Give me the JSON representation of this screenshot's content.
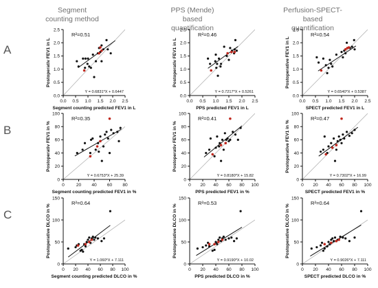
{
  "column_headers": [
    [
      "Segment",
      "counting method"
    ],
    [
      "PPS (Mende)",
      "based",
      "quantification"
    ],
    [
      "Perfusion-SPECT-",
      "based",
      "quantification"
    ]
  ],
  "row_letters": [
    "A",
    "B",
    "C"
  ],
  "colors": {
    "normal_point": "#111111",
    "highlight_point": "#c0281e",
    "identity_line": "#b5b5b5",
    "fit_line": "#111111",
    "header_text": "#707070"
  },
  "chart_data": [
    {
      "type": "scatter",
      "panel": "A-segment",
      "xlabel": "Segment counting predicted FEV1 in L",
      "ylabel": "Postoperativ FEV1 in L",
      "xlim": [
        0,
        2.5
      ],
      "ylim": [
        0,
        2.5
      ],
      "xticks": [
        "0.0",
        "0.5",
        "1.0",
        "1.5",
        "2.0",
        "2.5"
      ],
      "yticks": [
        "0.0",
        "0.5",
        "1.0",
        "1.5",
        "2.0",
        "2.5"
      ],
      "xtick_values": [
        0,
        0.5,
        1,
        1.5,
        2,
        2.5
      ],
      "ytick_values": [
        0,
        0.5,
        1,
        1.5,
        2,
        2.5
      ],
      "r2": "R²=0.51",
      "equation": "Y = 0.6831*X + 0.6447",
      "fit": {
        "slope": 0.6831,
        "intercept": 0.6447,
        "x_range": [
          0.6,
          2.1
        ]
      },
      "points": [
        [
          0.55,
          1.3
        ],
        [
          0.62,
          1.1
        ],
        [
          0.8,
          1.4
        ],
        [
          0.9,
          1.4
        ],
        [
          0.88,
          1.05
        ],
        [
          0.98,
          1.2
        ],
        [
          1.0,
          1.4
        ],
        [
          1.05,
          1.1
        ],
        [
          1.12,
          1.05
        ],
        [
          1.2,
          1.55
        ],
        [
          1.25,
          0.7
        ],
        [
          1.32,
          1.3
        ],
        [
          1.4,
          1.6
        ],
        [
          1.45,
          1.8
        ],
        [
          1.5,
          1.65
        ],
        [
          1.55,
          1.3
        ],
        [
          1.55,
          1.9
        ],
        [
          1.62,
          1.75
        ],
        [
          1.75,
          2.1
        ],
        [
          1.8,
          1.75
        ],
        [
          1.92,
          1.6
        ]
      ],
      "highlight_points": [
        [
          0.85,
          0.95
        ],
        [
          1.45,
          1.6
        ],
        [
          1.5,
          1.82
        ],
        [
          1.55,
          1.7
        ]
      ]
    },
    {
      "type": "scatter",
      "panel": "A-pps",
      "xlabel": "PPS predicted FEV1 in L",
      "ylabel": "Postoperativ FEV1 in L",
      "xlim": [
        0,
        2.5
      ],
      "ylim": [
        0,
        2.5
      ],
      "xticks": [
        "0.0",
        "0.5",
        "1.0",
        "1.5",
        "2.0",
        "2.5"
      ],
      "yticks": [
        "0.0",
        "0.5",
        "1.0",
        "1.5",
        "2.0",
        "2.5"
      ],
      "xtick_values": [
        0,
        0.5,
        1,
        1.5,
        2,
        2.5
      ],
      "ytick_values": [
        0,
        0.5,
        1,
        1.5,
        2,
        2.5
      ],
      "r2": "R²=0.46",
      "equation": "Y = 0.7217*X + 0.5261",
      "fit": {
        "slope": 0.7217,
        "intercept": 0.5261,
        "x_range": [
          0.7,
          1.85
        ]
      },
      "points": [
        [
          0.7,
          1.4
        ],
        [
          0.78,
          1.2
        ],
        [
          0.98,
          1.3
        ],
        [
          1.0,
          1.55
        ],
        [
          1.02,
          1.05
        ],
        [
          1.05,
          1.2
        ],
        [
          1.08,
          0.75
        ],
        [
          1.12,
          1.4
        ],
        [
          1.18,
          1.1
        ],
        [
          1.2,
          1.2
        ],
        [
          1.32,
          1.85
        ],
        [
          1.42,
          1.5
        ],
        [
          1.5,
          1.35
        ],
        [
          1.55,
          1.8
        ],
        [
          1.62,
          1.7
        ],
        [
          1.7,
          1.6
        ],
        [
          1.72,
          1.75
        ],
        [
          1.75,
          2.1
        ],
        [
          1.8,
          1.7
        ]
      ],
      "highlight_points": [
        [
          0.82,
          0.95
        ],
        [
          1.45,
          1.6
        ],
        [
          1.6,
          1.65
        ],
        [
          1.72,
          1.65
        ]
      ]
    },
    {
      "type": "scatter",
      "panel": "A-spect",
      "xlabel": "SPECT predicted FEV1 in L",
      "ylabel": "Postoperative FEV1 in L",
      "xlim": [
        0,
        2.5
      ],
      "ylim": [
        0,
        2.5
      ],
      "xticks": [
        "0.0",
        "0.5",
        "1.0",
        "1.5",
        "2.0",
        "2.5"
      ],
      "yticks": [
        "0.0",
        "0.5",
        "1.0",
        "1.5",
        "2.0",
        "2.5"
      ],
      "xtick_values": [
        0,
        0.5,
        1,
        1.5,
        2,
        2.5
      ],
      "ytick_values": [
        0,
        0.5,
        1,
        1.5,
        2,
        2.5
      ],
      "r2": "R²=0.54",
      "equation": "Y = 0.6540*X + 0.5387",
      "fit": {
        "slope": 0.654,
        "intercept": 0.5387,
        "x_range": [
          0.6,
          2.05
        ]
      },
      "points": [
        [
          0.55,
          1.45
        ],
        [
          0.62,
          1.25
        ],
        [
          0.8,
          1.4
        ],
        [
          0.9,
          1.15
        ],
        [
          0.95,
          0.85
        ],
        [
          1.0,
          1.05
        ],
        [
          1.05,
          1.35
        ],
        [
          1.1,
          1.2
        ],
        [
          1.15,
          1.1
        ],
        [
          1.3,
          1.55
        ],
        [
          1.5,
          1.65
        ],
        [
          1.55,
          1.45
        ],
        [
          1.6,
          1.7
        ],
        [
          1.65,
          1.6
        ],
        [
          1.7,
          2.0
        ],
        [
          1.82,
          1.8
        ],
        [
          1.9,
          1.85
        ],
        [
          1.98,
          2.1
        ],
        [
          2.0,
          1.75
        ]
      ],
      "highlight_points": [
        [
          0.72,
          0.95
        ],
        [
          1.65,
          1.75
        ],
        [
          1.72,
          1.8
        ],
        [
          1.78,
          1.82
        ]
      ]
    },
    {
      "type": "scatter",
      "panel": "B-segment",
      "xlabel": "Segment counting predicted FEV1 in %",
      "ylabel": "Postoperativ FEV1 in %",
      "xlim": [
        0,
        80
      ],
      "ylim": [
        0,
        100
      ],
      "xticks": [
        "0",
        "20",
        "40",
        "60",
        "80"
      ],
      "yticks": [
        "0",
        "20",
        "40",
        "60",
        "80",
        "100"
      ],
      "xtick_values": [
        0,
        20,
        40,
        60,
        80
      ],
      "ytick_values": [
        0,
        20,
        40,
        60,
        80,
        100
      ],
      "r2": "R²=0.35",
      "equation": "Y = 0.6753*X + 25.39",
      "fit": {
        "slope": 0.6753,
        "intercept": 25.39,
        "x_range": [
          15,
          75
        ]
      },
      "points": [
        [
          18,
          40
        ],
        [
          25,
          45
        ],
        [
          28,
          55
        ],
        [
          35,
          40
        ],
        [
          36,
          60
        ],
        [
          38,
          62
        ],
        [
          42,
          45
        ],
        [
          45,
          55
        ],
        [
          46,
          42
        ],
        [
          48,
          65
        ],
        [
          50,
          28
        ],
        [
          52,
          50
        ],
        [
          54,
          68
        ],
        [
          56,
          72
        ],
        [
          58,
          62
        ],
        [
          60,
          40
        ],
        [
          62,
          75
        ],
        [
          65,
          70
        ],
        [
          70,
          72
        ],
        [
          72,
          58
        ],
        [
          74,
          78
        ]
      ],
      "highlight_points": [
        [
          35,
          35
        ],
        [
          44,
          50
        ],
        [
          48,
          58
        ],
        [
          60,
          92
        ]
      ]
    },
    {
      "type": "scatter",
      "panel": "B-pps",
      "xlabel": "PPS predicted FEV1 in %",
      "ylabel": "Postoperativ FEV1 in %",
      "xlim": [
        0,
        100
      ],
      "ylim": [
        0,
        100
      ],
      "xticks": [
        "0",
        "20",
        "40",
        "60",
        "80",
        "100"
      ],
      "yticks": [
        "0",
        "20",
        "40",
        "60",
        "80",
        "100"
      ],
      "xtick_values": [
        0,
        20,
        40,
        60,
        80,
        100
      ],
      "ytick_values": [
        0,
        20,
        40,
        60,
        80,
        100
      ],
      "r2": "R²=0.41",
      "equation": "Y = 0.8180*X + 15.82",
      "fit": {
        "slope": 0.818,
        "intercept": 15.82,
        "x_range": [
          22,
          80
        ]
      },
      "points": [
        [
          25,
          40
        ],
        [
          30,
          45
        ],
        [
          32,
          62
        ],
        [
          38,
          35
        ],
        [
          40,
          48
        ],
        [
          42,
          65
        ],
        [
          45,
          50
        ],
        [
          46,
          55
        ],
        [
          48,
          28
        ],
        [
          50,
          60
        ],
        [
          52,
          45
        ],
        [
          54,
          70
        ],
        [
          56,
          60
        ],
        [
          58,
          62
        ],
        [
          60,
          58
        ],
        [
          62,
          60
        ],
        [
          66,
          72
        ],
        [
          70,
          68
        ],
        [
          74,
          60
        ],
        [
          78,
          78
        ]
      ],
      "highlight_points": [
        [
          35,
          38
        ],
        [
          48,
          52
        ],
        [
          55,
          55
        ],
        [
          62,
          92
        ]
      ]
    },
    {
      "type": "scatter",
      "panel": "B-spect",
      "xlabel": "SPECT predicted FEV1 in %",
      "ylabel": "Postoperative FEV1 in %",
      "xlim": [
        0,
        100
      ],
      "ylim": [
        0,
        100
      ],
      "xticks": [
        "0",
        "20",
        "40",
        "60",
        "80",
        "100"
      ],
      "yticks": [
        "0",
        "20",
        "40",
        "60",
        "80",
        "100"
      ],
      "xtick_values": [
        0,
        20,
        40,
        60,
        80,
        100
      ],
      "ytick_values": [
        0,
        20,
        40,
        60,
        80,
        100
      ],
      "r2": "R²=0.47",
      "equation": "Y = 0.7302*X + 16.99",
      "fit": {
        "slope": 0.7302,
        "intercept": 16.99,
        "x_range": [
          25,
          85
        ]
      },
      "points": [
        [
          28,
          42
        ],
        [
          32,
          45
        ],
        [
          34,
          65
        ],
        [
          38,
          40
        ],
        [
          40,
          50
        ],
        [
          44,
          55
        ],
        [
          46,
          48
        ],
        [
          48,
          62
        ],
        [
          50,
          28
        ],
        [
          52,
          45
        ],
        [
          54,
          58
        ],
        [
          56,
          65
        ],
        [
          58,
          60
        ],
        [
          60,
          55
        ],
        [
          62,
          68
        ],
        [
          64,
          62
        ],
        [
          68,
          72
        ],
        [
          72,
          66
        ],
        [
          76,
          70
        ],
        [
          80,
          75
        ]
      ],
      "highlight_points": [
        [
          36,
          38
        ],
        [
          46,
          48
        ],
        [
          52,
          52
        ],
        [
          60,
          92
        ]
      ]
    },
    {
      "type": "scatter",
      "panel": "C-segment",
      "xlabel": "Segment counting predicted DLCO in %",
      "ylabel": "Postoperative DLCO in %",
      "xlim": [
        0,
        100
      ],
      "ylim": [
        0,
        150
      ],
      "xticks": [
        "0",
        "20",
        "40",
        "60",
        "80",
        "100"
      ],
      "yticks": [
        "0",
        "50",
        "100",
        "150"
      ],
      "xtick_values": [
        0,
        20,
        40,
        60,
        80,
        100
      ],
      "ytick_values": [
        0,
        50,
        100,
        150
      ],
      "r2": "R²=0.64",
      "equation": "Y = 1.060*X + 7.111",
      "fit": {
        "slope": 1.06,
        "intercept": 7.111,
        "x_range": [
          8,
          76
        ]
      },
      "points": [
        [
          8,
          35
        ],
        [
          20,
          38
        ],
        [
          22,
          42
        ],
        [
          25,
          45
        ],
        [
          28,
          30
        ],
        [
          30,
          32
        ],
        [
          32,
          28
        ],
        [
          34,
          45
        ],
        [
          36,
          40
        ],
        [
          38,
          50
        ],
        [
          40,
          55
        ],
        [
          42,
          60
        ],
        [
          44,
          48
        ],
        [
          46,
          58
        ],
        [
          48,
          62
        ],
        [
          50,
          55
        ],
        [
          52,
          60
        ],
        [
          56,
          58
        ],
        [
          62,
          52
        ],
        [
          66,
          58
        ],
        [
          76,
          120
        ]
      ],
      "highlight_points": [
        [
          24,
          42
        ],
        [
          36,
          45
        ],
        [
          42,
          50
        ],
        [
          46,
          55
        ]
      ]
    },
    {
      "type": "scatter",
      "panel": "C-pps",
      "xlabel": "PPS predicted DLCO in %",
      "ylabel": "Postoperative DLCO in %",
      "xlim": [
        0,
        100
      ],
      "ylim": [
        0,
        150
      ],
      "xticks": [
        "0",
        "20",
        "40",
        "60",
        "80",
        "100"
      ],
      "yticks": [
        "0",
        "50",
        "100",
        "150"
      ],
      "xtick_values": [
        0,
        20,
        40,
        60,
        80,
        100
      ],
      "ytick_values": [
        0,
        50,
        100,
        150
      ],
      "r2": "R²=0.53",
      "equation": "Y = 0.9190*X + 10.02",
      "fit": {
        "slope": 0.919,
        "intercept": 10.02,
        "x_range": [
          10,
          80
        ]
      },
      "points": [
        [
          12,
          35
        ],
        [
          20,
          38
        ],
        [
          25,
          42
        ],
        [
          28,
          48
        ],
        [
          30,
          40
        ],
        [
          35,
          30
        ],
        [
          38,
          32
        ],
        [
          40,
          50
        ],
        [
          42,
          45
        ],
        [
          44,
          55
        ],
        [
          46,
          60
        ],
        [
          48,
          52
        ],
        [
          50,
          58
        ],
        [
          52,
          62
        ],
        [
          55,
          55
        ],
        [
          60,
          58
        ],
        [
          64,
          60
        ],
        [
          68,
          52
        ],
        [
          72,
          58
        ],
        [
          78,
          120
        ]
      ],
      "highlight_points": [
        [
          30,
          45
        ],
        [
          38,
          45
        ],
        [
          44,
          50
        ],
        [
          50,
          55
        ]
      ]
    },
    {
      "type": "scatter",
      "panel": "C-spect",
      "xlabel": "SPECT predicted DLCO in %",
      "ylabel": "Postoperative DLCO in %",
      "xlim": [
        0,
        100
      ],
      "ylim": [
        0,
        150
      ],
      "xticks": [
        "0",
        "20",
        "40",
        "60",
        "80",
        "100"
      ],
      "yticks": [
        "0",
        "50",
        "100",
        "150"
      ],
      "xtick_values": [
        0,
        20,
        40,
        60,
        80,
        100
      ],
      "ytick_values": [
        0,
        50,
        100,
        150
      ],
      "r2": "R²=0.64",
      "equation": "Y = 0.9026*X + 7.111",
      "fit": {
        "slope": 0.9026,
        "intercept": 7.111,
        "x_range": [
          12,
          90
        ]
      },
      "points": [
        [
          14,
          35
        ],
        [
          22,
          38
        ],
        [
          28,
          42
        ],
        [
          30,
          48
        ],
        [
          32,
          30
        ],
        [
          34,
          35
        ],
        [
          38,
          40
        ],
        [
          40,
          50
        ],
        [
          42,
          45
        ],
        [
          44,
          55
        ],
        [
          46,
          58
        ],
        [
          48,
          52
        ],
        [
          50,
          60
        ],
        [
          54,
          55
        ],
        [
          58,
          62
        ],
        [
          62,
          60
        ],
        [
          66,
          58
        ],
        [
          72,
          52
        ],
        [
          80,
          60
        ],
        [
          90,
          120
        ]
      ],
      "highlight_points": [
        [
          34,
          45
        ],
        [
          44,
          48
        ],
        [
          52,
          52
        ],
        [
          56,
          55
        ]
      ]
    }
  ]
}
